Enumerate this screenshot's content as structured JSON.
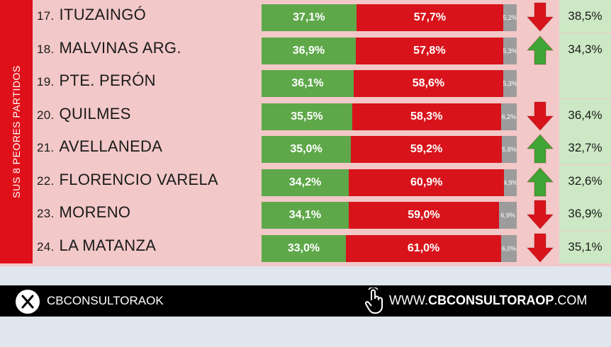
{
  "side_label": "SUS 8 PEORES PARTIDOS",
  "chart_data": {
    "type": "bar",
    "stacked": true,
    "horizontal": true,
    "categories": [
      "17. ITUZAINGÓ",
      "18. MALVINAS ARG.",
      "19. PTE. PERÓN",
      "20. QUILMES",
      "21. AVELLANEDA",
      "22. FLORENCIO VARELA",
      "23. MORENO",
      "24. LA MATANZA"
    ],
    "rows": [
      {
        "num": "17.",
        "name": "ITUZAINGÓ",
        "green": "37,1%",
        "red": "57,7%",
        "other": "5,2%",
        "g": 37.1,
        "r": 57.7,
        "o": 5.2,
        "trend": "down",
        "prev": "38,5%"
      },
      {
        "num": "18.",
        "name": "MALVINAS ARG.",
        "green": "36,9%",
        "red": "57,8%",
        "other": "5,3%",
        "g": 36.9,
        "r": 57.8,
        "o": 5.3,
        "trend": "up",
        "prev": "34,3%"
      },
      {
        "num": "19.",
        "name": "PTE. PERÓN",
        "green": "36,1%",
        "red": "58,6%",
        "other": "5,3%",
        "g": 36.1,
        "r": 58.6,
        "o": 5.3,
        "trend": "none",
        "prev": ""
      },
      {
        "num": "20.",
        "name": "QUILMES",
        "green": "35,5%",
        "red": "58,3%",
        "other": "6,2%",
        "g": 35.5,
        "r": 58.3,
        "o": 6.2,
        "trend": "down",
        "prev": "36,4%"
      },
      {
        "num": "21.",
        "name": "AVELLANEDA",
        "green": "35,0%",
        "red": "59,2%",
        "other": "5,8%",
        "g": 35.0,
        "r": 59.2,
        "o": 5.8,
        "trend": "up",
        "prev": "32,7%"
      },
      {
        "num": "22.",
        "name": "FLORENCIO VARELA",
        "green": "34,2%",
        "red": "60,9%",
        "other": "4,9%",
        "g": 34.2,
        "r": 60.9,
        "o": 4.9,
        "trend": "up",
        "prev": "32,6%"
      },
      {
        "num": "23.",
        "name": "MORENO",
        "green": "34,1%",
        "red": "59,0%",
        "other": "6,9%",
        "g": 34.1,
        "r": 59.0,
        "o": 6.9,
        "trend": "down",
        "prev": "36,9%"
      },
      {
        "num": "24.",
        "name": "LA MATANZA",
        "green": "33,0%",
        "red": "61,0%",
        "other": "6,0%",
        "g": 33.0,
        "r": 61.0,
        "o": 6.0,
        "trend": "down",
        "prev": "35,1%"
      }
    ],
    "colors": {
      "green": "#5ea84a",
      "red": "#d8131b",
      "other": "#9c9c9c",
      "up": "#3fa535",
      "down": "#d8131b"
    }
  },
  "footer": {
    "x_handle": "CBCONSULTORAOK",
    "website_prefix": "WWW.",
    "website_name": "CBCONSULTORAOP",
    "website_suffix": ".COM",
    "x_icon": "x-logo-icon",
    "cursor_icon": "hand-pointer-icon"
  }
}
